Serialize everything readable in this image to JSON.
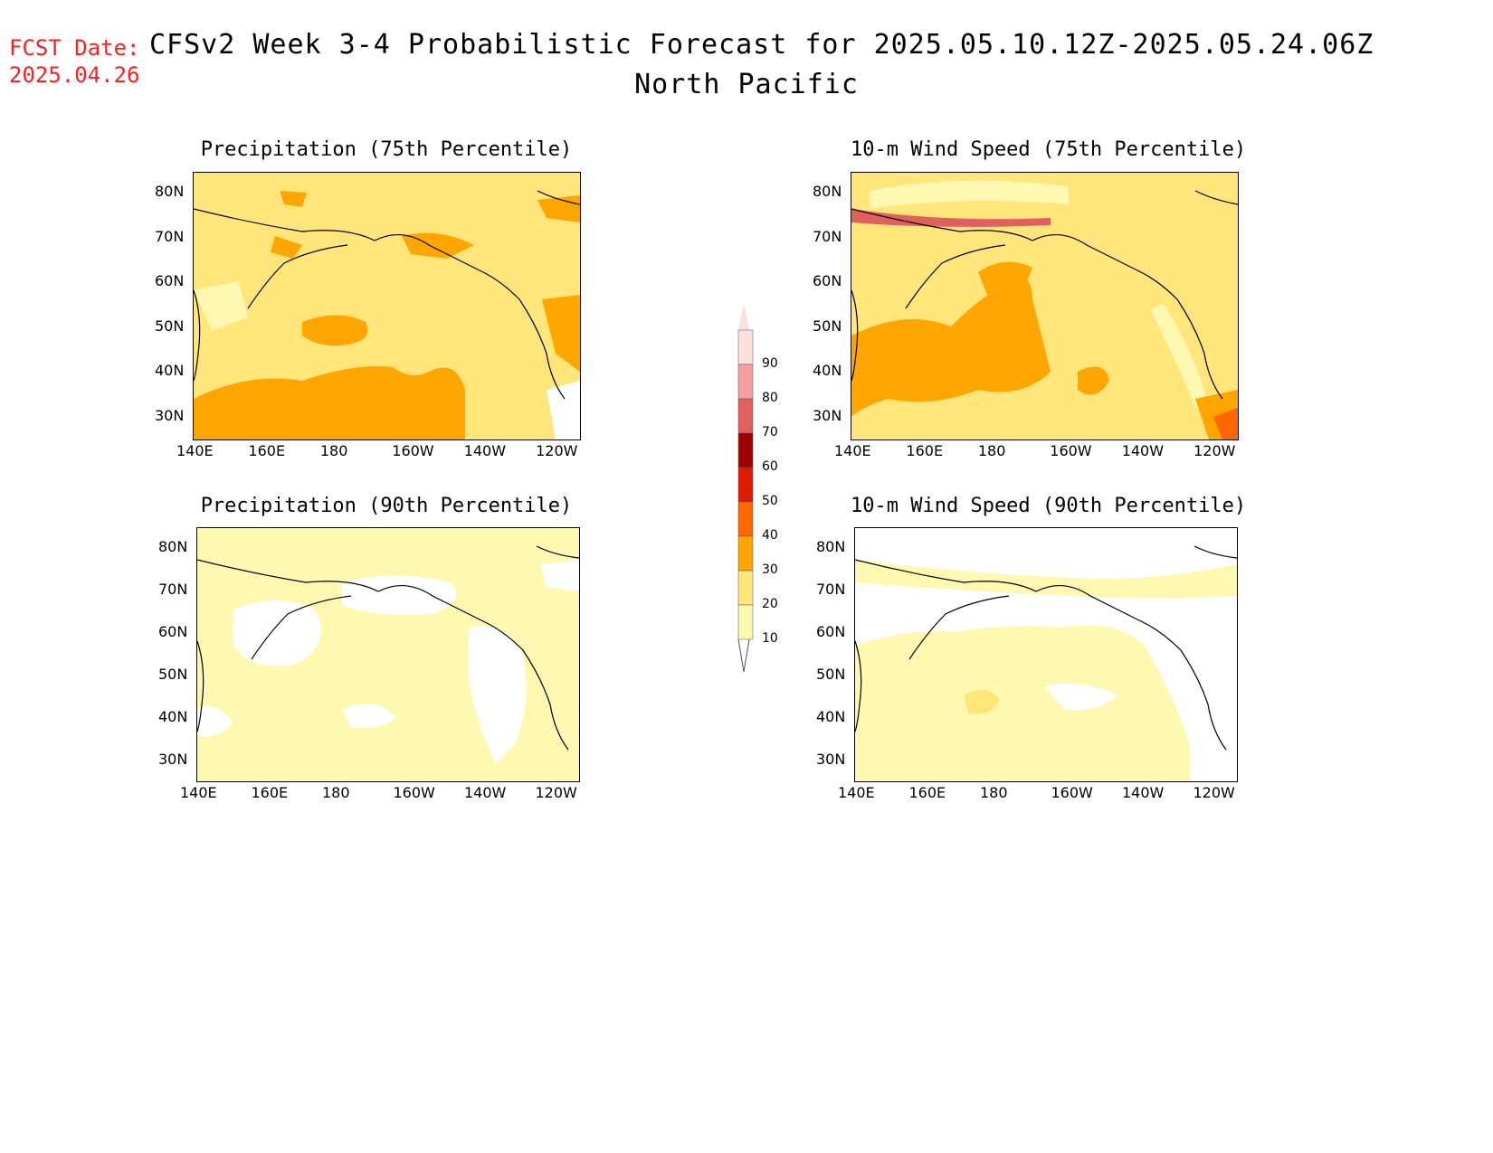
{
  "header": {
    "fcst_label": "FCST Date:",
    "fcst_date": "2025.04.26",
    "title": "CFSv2 Week 3-4 Probabilistic Forecast for 2025.05.10.12Z-2025.05.24.06Z",
    "region": "North Pacific"
  },
  "axes": {
    "x_ticks": [
      "140E",
      "160E",
      "180",
      "160W",
      "140W",
      "120W"
    ],
    "y_ticks": [
      "80N",
      "70N",
      "60N",
      "50N",
      "40N",
      "30N"
    ]
  },
  "panels": [
    {
      "title": "Precipitation (75th Percentile)",
      "level": "moderate"
    },
    {
      "title": "10-m Wind Speed (75th Percentile)",
      "level": "moderate-high"
    },
    {
      "title": "Precipitation (90th Percentile)",
      "level": "low"
    },
    {
      "title": "10-m Wind Speed (90th Percentile)",
      "level": "low"
    }
  ],
  "colorbar": {
    "levels": [
      "90",
      "80",
      "70",
      "60",
      "50",
      "40",
      "30",
      "20",
      "10"
    ],
    "colors": [
      "#fde0e0",
      "#f4a0a0",
      "#e06060",
      "#a00000",
      "#e01a00",
      "#ff6600",
      "#ffa500",
      "#ffe57a",
      "#fff8b0"
    ]
  }
}
